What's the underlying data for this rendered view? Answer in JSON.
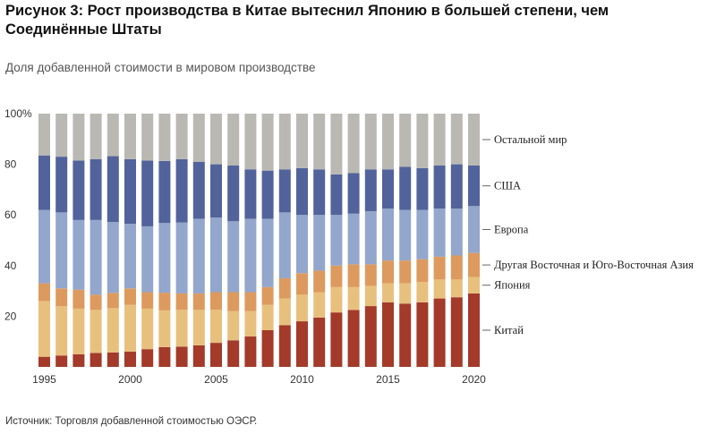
{
  "title": "Рисунок 3: Рост производства в Китае вытеснил Японию в большей степени, чем Соединённые Штаты",
  "subtitle": "Доля добавленной стоимости в мировом производстве",
  "source": "Источник: Торговля добавленной стоимостью ОЭСР.",
  "chart_data": {
    "type": "bar",
    "stacked": true,
    "x": [
      1995,
      1996,
      1997,
      1998,
      1999,
      2000,
      2001,
      2002,
      2003,
      2004,
      2005,
      2006,
      2007,
      2008,
      2009,
      2010,
      2011,
      2012,
      2013,
      2014,
      2015,
      2016,
      2017,
      2018,
      2019,
      2020
    ],
    "x_tick_labels": [
      "1995",
      "2000",
      "2005",
      "2010",
      "2015",
      "2020"
    ],
    "x_tick_values": [
      1995,
      2000,
      2005,
      2010,
      2015,
      2020
    ],
    "y_tick_labels": [
      "100%",
      "80",
      "60",
      "40",
      "20"
    ],
    "y_tick_values": [
      100,
      80,
      60,
      40,
      20
    ],
    "ylim": [
      0,
      100
    ],
    "series": [
      {
        "name": "Китай",
        "color": "#a33a2a",
        "values": [
          4,
          4.5,
          5,
          5.5,
          5.7,
          6,
          7,
          7.8,
          8,
          8.5,
          9.5,
          10.5,
          12,
          14.5,
          16.5,
          18,
          19.5,
          21.5,
          22.5,
          24,
          25.5,
          25,
          25.5,
          27,
          27.5,
          29
        ]
      },
      {
        "name": "Япония",
        "color": "#e8c07e",
        "values": [
          22,
          19.5,
          18,
          17,
          17.5,
          18.5,
          16,
          14.5,
          14.5,
          14,
          13,
          11.5,
          10,
          10,
          10.5,
          10.5,
          10,
          10,
          9,
          8,
          7.5,
          8,
          8,
          7.5,
          7,
          6.5
        ]
      },
      {
        "name": "Другая Восточная и Юго-Восточная Азия",
        "color": "#dd9a5e",
        "values": [
          7,
          7,
          7.5,
          6,
          6,
          6.5,
          6.5,
          7,
          6.5,
          6.5,
          7,
          7.5,
          7.5,
          7,
          8,
          8.5,
          8.5,
          8.5,
          9,
          8.5,
          9,
          9,
          9,
          9,
          9.5,
          9.5
        ]
      },
      {
        "name": "Европа",
        "color": "#93a6cc",
        "values": [
          29,
          30,
          27.5,
          29.5,
          28,
          25.5,
          26,
          27.5,
          28,
          29.5,
          29.5,
          28,
          29,
          27,
          26,
          23,
          22,
          20,
          20,
          21,
          20.5,
          20,
          19.5,
          19,
          18.5,
          18.5
        ]
      },
      {
        "name": "США",
        "color": "#52639b",
        "values": [
          21.5,
          22,
          23.5,
          24,
          26,
          25.5,
          26,
          24.5,
          25,
          22.5,
          21,
          22,
          19.5,
          19,
          17,
          18.5,
          18,
          16,
          16,
          16.5,
          15.5,
          17,
          16.5,
          17,
          17.5,
          16
        ]
      },
      {
        "name": "Остальной мир",
        "color": "#b9b8b3",
        "values": [
          16.5,
          17,
          18.5,
          18,
          16.8,
          18,
          18.5,
          18.7,
          18,
          19,
          20,
          20.5,
          22,
          22.5,
          22,
          21.5,
          22,
          24,
          23.5,
          22,
          22,
          21,
          21.5,
          20.5,
          20,
          20.5
        ]
      }
    ],
    "legend_placement": "right, aligned to last bar",
    "grid": false
  }
}
